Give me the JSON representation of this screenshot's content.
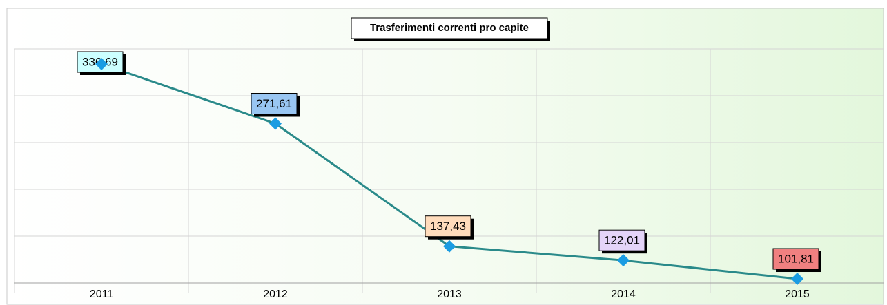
{
  "chart_data": {
    "type": "line",
    "title": "Trasferimenti correnti pro capite",
    "categories": [
      "2011",
      "2012",
      "2013",
      "2014",
      "2015"
    ],
    "values": [
      336.69,
      271.61,
      137.43,
      122.01,
      101.81
    ],
    "value_labels": [
      "336,69",
      "271,61",
      "137,43",
      "122,01",
      "101,81"
    ],
    "label_colors": [
      "#ccffff",
      "#99c6f2",
      "#ffdcbc",
      "#e4d4f8",
      "#f08080"
    ],
    "color": "#2a8a8a",
    "marker_color": "#1a9ce2",
    "ylim": [
      97.3,
      353.3
    ],
    "grid": true
  }
}
